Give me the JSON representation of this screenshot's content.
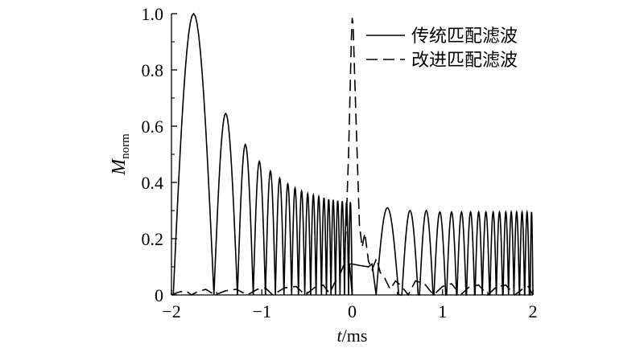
{
  "chart_data": {
    "type": "line",
    "xlabel": {
      "var": "t",
      "unit": "/ms"
    },
    "ylabel": {
      "main": "M",
      "sub": "norm"
    },
    "xlim": [
      -2,
      2
    ],
    "ylim": [
      0,
      1
    ],
    "xticks": [
      "−2",
      "−1",
      "0",
      "1",
      "2"
    ],
    "yticks": [
      "0",
      "0.2",
      "0.4",
      "0.6",
      "0.8",
      "1.0"
    ],
    "grid": false,
    "legend_position": "top-right",
    "series": [
      {
        "name": "传统匹配滤波",
        "style": "solid",
        "color": "#000000",
        "peaks": [
          {
            "x": -1.69,
            "y": 1.0
          },
          {
            "x": -1.37,
            "y": 0.645
          },
          {
            "x": -1.17,
            "y": 0.535
          },
          {
            "x": -1.02,
            "y": 0.475
          },
          {
            "x": -0.9,
            "y": 0.44
          },
          {
            "x": -0.8,
            "y": 0.415
          },
          {
            "x": -0.71,
            "y": 0.395
          },
          {
            "x": -0.63,
            "y": 0.38
          },
          {
            "x": -0.56,
            "y": 0.37
          },
          {
            "x": -0.49,
            "y": 0.36
          },
          {
            "x": -0.43,
            "y": 0.355
          },
          {
            "x": -0.37,
            "y": 0.35
          },
          {
            "x": -0.31,
            "y": 0.345
          },
          {
            "x": -0.26,
            "y": 0.34
          },
          {
            "x": -0.21,
            "y": 0.338
          },
          {
            "x": -0.16,
            "y": 0.335
          },
          {
            "x": -0.11,
            "y": 0.333
          },
          {
            "x": -0.06,
            "y": 0.33
          },
          {
            "x": -0.02,
            "y": 0.33
          },
          {
            "x": 0.39,
            "y": 0.31
          },
          {
            "x": 0.64,
            "y": 0.3
          },
          {
            "x": 0.82,
            "y": 0.3
          },
          {
            "x": 0.97,
            "y": 0.295
          },
          {
            "x": 1.1,
            "y": 0.295
          },
          {
            "x": 1.21,
            "y": 0.295
          },
          {
            "x": 1.31,
            "y": 0.295
          },
          {
            "x": 1.4,
            "y": 0.295
          },
          {
            "x": 1.48,
            "y": 0.295
          },
          {
            "x": 1.56,
            "y": 0.295
          },
          {
            "x": 1.63,
            "y": 0.295
          },
          {
            "x": 1.7,
            "y": 0.295
          },
          {
            "x": 1.76,
            "y": 0.295
          },
          {
            "x": 1.82,
            "y": 0.295
          },
          {
            "x": 1.88,
            "y": 0.295
          },
          {
            "x": 1.935,
            "y": 0.295
          },
          {
            "x": 1.985,
            "y": 0.295
          }
        ],
        "plateau": [
          {
            "x": -0.03,
            "y": 0.11
          },
          {
            "x": 0.0,
            "y": 0.11
          },
          {
            "x": 0.08,
            "y": 0.105
          },
          {
            "x": 0.18,
            "y": 0.1
          },
          {
            "x": 0.22,
            "y": 0.11
          }
        ]
      },
      {
        "name": "改进匹配滤波",
        "style": "dashed",
        "color": "#000000",
        "points": [
          {
            "x": -2.0,
            "y": 0.0
          },
          {
            "x": -1.92,
            "y": 0.01
          },
          {
            "x": -1.84,
            "y": 0.015
          },
          {
            "x": -1.78,
            "y": 0.0
          },
          {
            "x": -1.72,
            "y": 0.01
          },
          {
            "x": -1.62,
            "y": 0.02
          },
          {
            "x": -1.52,
            "y": 0.0
          },
          {
            "x": -1.4,
            "y": 0.015
          },
          {
            "x": -1.28,
            "y": 0.02
          },
          {
            "x": -1.16,
            "y": 0.0
          },
          {
            "x": -1.05,
            "y": 0.02
          },
          {
            "x": -0.96,
            "y": 0.025
          },
          {
            "x": -0.88,
            "y": 0.0
          },
          {
            "x": -0.75,
            "y": 0.025
          },
          {
            "x": -0.62,
            "y": 0.03
          },
          {
            "x": -0.52,
            "y": 0.0
          },
          {
            "x": -0.4,
            "y": 0.03
          },
          {
            "x": -0.32,
            "y": 0.035
          },
          {
            "x": -0.25,
            "y": 0.005
          },
          {
            "x": -0.2,
            "y": 0.04
          },
          {
            "x": -0.14,
            "y": 0.07
          },
          {
            "x": -0.1,
            "y": 0.1
          },
          {
            "x": -0.07,
            "y": 0.22
          },
          {
            "x": -0.04,
            "y": 0.5
          },
          {
            "x": -0.01,
            "y": 0.9
          },
          {
            "x": 0.0,
            "y": 0.985
          },
          {
            "x": 0.01,
            "y": 0.96
          },
          {
            "x": 0.04,
            "y": 0.65
          },
          {
            "x": 0.08,
            "y": 0.25
          },
          {
            "x": 0.11,
            "y": 0.17
          },
          {
            "x": 0.14,
            "y": 0.22
          },
          {
            "x": 0.18,
            "y": 0.12
          },
          {
            "x": 0.22,
            "y": 0.09
          },
          {
            "x": 0.27,
            "y": 0.13
          },
          {
            "x": 0.31,
            "y": 0.08
          },
          {
            "x": 0.36,
            "y": 0.06
          },
          {
            "x": 0.42,
            "y": 0.02
          },
          {
            "x": 0.48,
            "y": 0.05
          },
          {
            "x": 0.55,
            "y": 0.03
          },
          {
            "x": 0.62,
            "y": 0.0
          },
          {
            "x": 0.7,
            "y": 0.05
          },
          {
            "x": 0.8,
            "y": 0.04
          },
          {
            "x": 0.9,
            "y": 0.0
          },
          {
            "x": 1.0,
            "y": 0.03
          },
          {
            "x": 1.1,
            "y": 0.04
          },
          {
            "x": 1.2,
            "y": 0.0
          },
          {
            "x": 1.3,
            "y": 0.03
          },
          {
            "x": 1.4,
            "y": 0.035
          },
          {
            "x": 1.5,
            "y": 0.0
          },
          {
            "x": 1.6,
            "y": 0.03
          },
          {
            "x": 1.7,
            "y": 0.035
          },
          {
            "x": 1.8,
            "y": 0.0
          },
          {
            "x": 1.9,
            "y": 0.025
          },
          {
            "x": 1.95,
            "y": 0.03
          },
          {
            "x": 2.0,
            "y": 0.0
          }
        ]
      }
    ]
  }
}
